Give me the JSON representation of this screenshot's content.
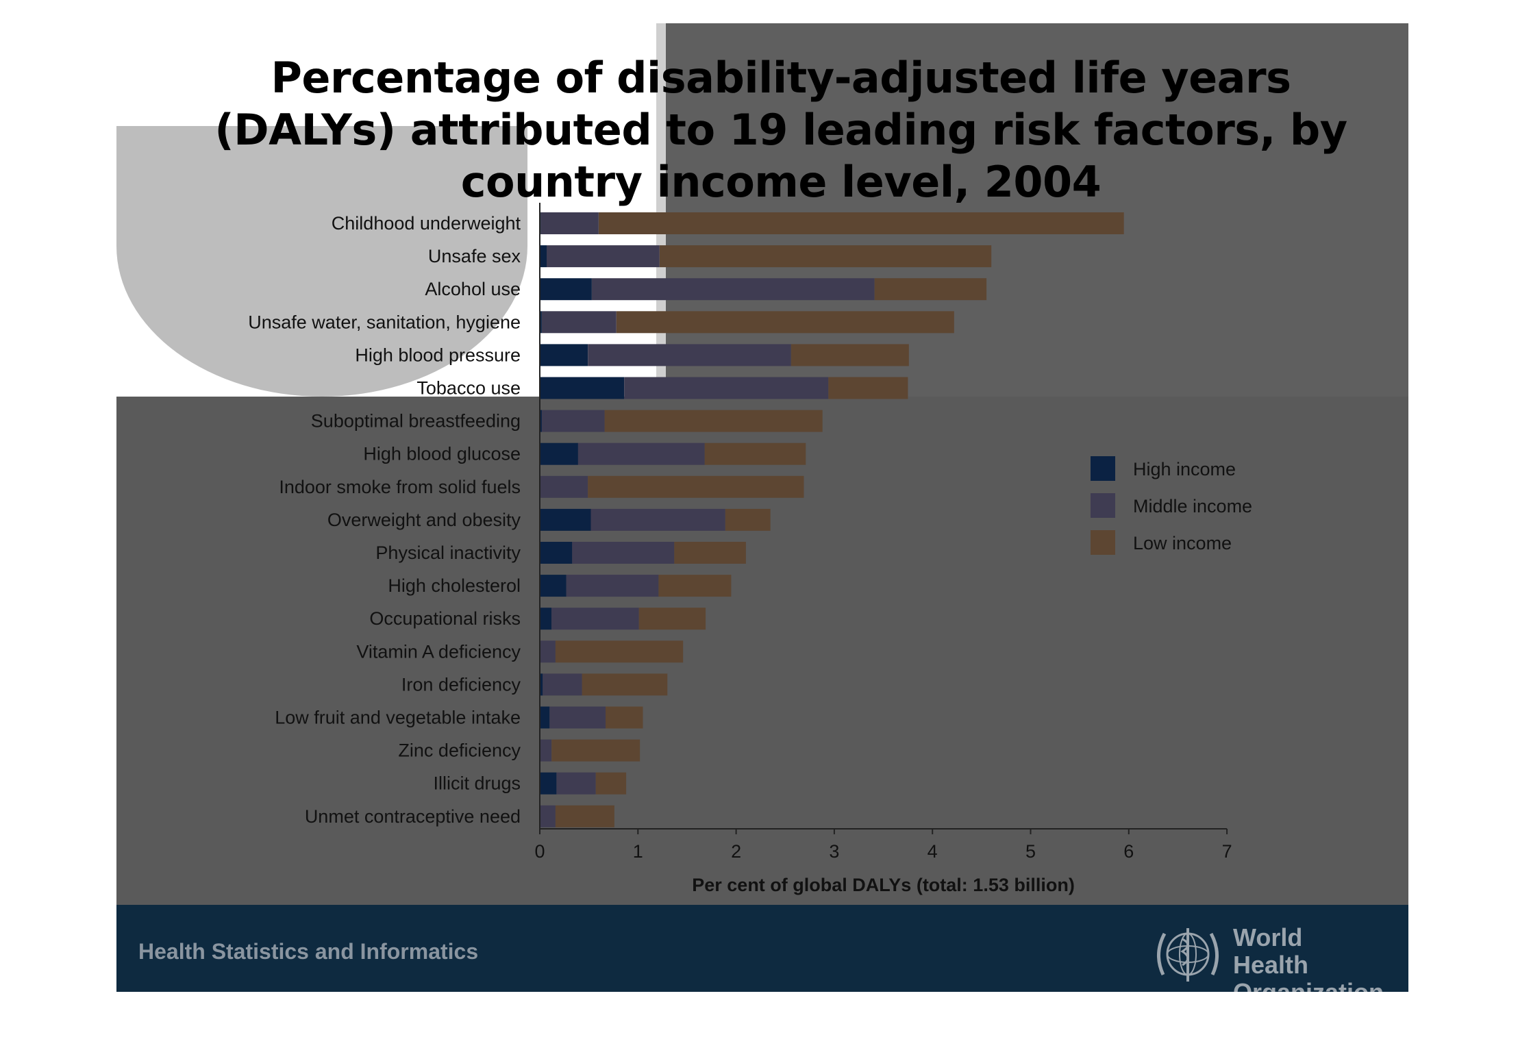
{
  "slide": {
    "title": "Percentage of disability-adjusted life years (DALYs) attributed to 19 leading risk factors, by country income level, 2004"
  },
  "footer": {
    "text": "Health Statistics and Informatics",
    "org_name_line1": "World Health",
    "org_name_line2": "Organization",
    "logo_icon": "who-emblem-icon"
  },
  "colors": {
    "high_income": "#0b2243",
    "middle_income": "#3f3c52",
    "low_income": "#5d4632",
    "slide_background": "#5a5a5a",
    "footer_background": "#0e2a40"
  },
  "chart_data": {
    "type": "bar",
    "orientation": "horizontal",
    "stacked": true,
    "xlabel": "Per cent of global DALYs (total: 1.53 billion)",
    "ylabel": "",
    "xlim": [
      0,
      7
    ],
    "xticks": [
      "0",
      "1",
      "2",
      "3",
      "4",
      "5",
      "6",
      "7"
    ],
    "legend_position": "right",
    "categories": [
      "Childhood underweight",
      "Unsafe sex",
      "Alcohol use",
      "Unsafe water, sanitation, hygiene",
      "High blood pressure",
      "Tobacco use",
      "Suboptimal breastfeeding",
      "High blood glucose",
      "Indoor smoke from solid fuels",
      "Overweight and obesity",
      "Physical inactivity",
      "High cholesterol",
      "Occupational risks",
      "Vitamin A deficiency",
      "Iron deficiency",
      "Low fruit and vegetable intake",
      "Zinc deficiency",
      "Illicit drugs",
      "Unmet contraceptive need"
    ],
    "series": [
      {
        "name": "High income",
        "values": [
          0.01,
          0.07,
          0.53,
          0.02,
          0.49,
          0.86,
          0.02,
          0.39,
          0.0,
          0.52,
          0.33,
          0.27,
          0.12,
          0.0,
          0.03,
          0.1,
          0.0,
          0.17,
          0.0
        ]
      },
      {
        "name": "Middle income",
        "values": [
          0.59,
          1.15,
          2.88,
          0.76,
          2.07,
          2.08,
          0.64,
          1.29,
          0.49,
          1.37,
          1.04,
          0.94,
          0.89,
          0.16,
          0.4,
          0.57,
          0.12,
          0.4,
          0.16
        ]
      },
      {
        "name": "Low income",
        "values": [
          5.35,
          3.38,
          1.14,
          3.44,
          1.2,
          0.81,
          2.22,
          1.03,
          2.2,
          0.46,
          0.73,
          0.74,
          0.68,
          1.3,
          0.87,
          0.38,
          0.9,
          0.31,
          0.6
        ]
      }
    ]
  }
}
